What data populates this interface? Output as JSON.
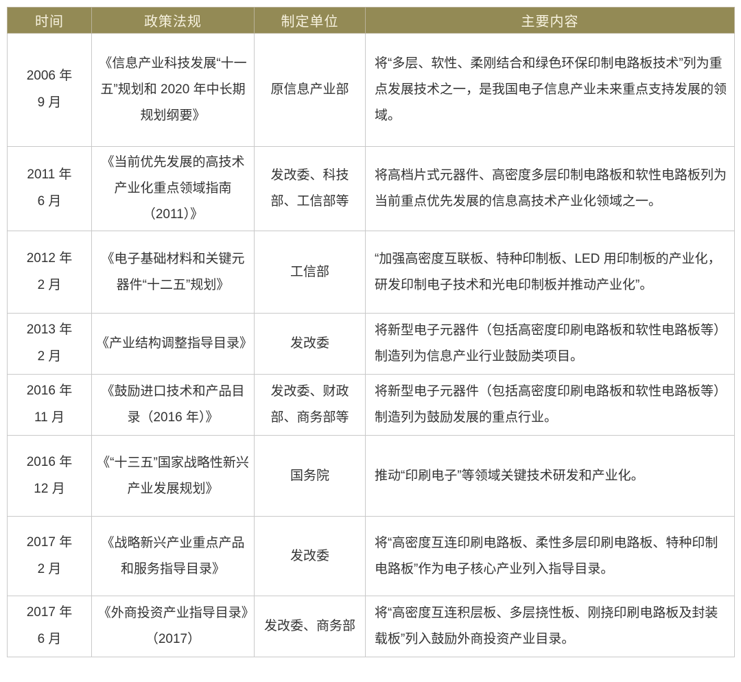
{
  "colors": {
    "header_bg": "#938a55",
    "header_text": "#f7f2df",
    "cell_border": "#c9c9c9",
    "body_text": "#333333"
  },
  "table": {
    "headers": [
      "时间",
      "政策法规",
      "制定单位",
      "主要内容"
    ],
    "rows": [
      {
        "time_year": "2006 年",
        "time_month": "9 月",
        "policy": "《信息产业科技发展“十一五”规划和 2020 年中长期规划纲要》",
        "unit": "原信息产业部",
        "content": "将“多层、软性、柔刚结合和绿色环保印制电路板技术”列为重点发展技术之一，是我国电子信息产业未来重点支持发展的领域。"
      },
      {
        "time_year": "2011 年",
        "time_month": "6 月",
        "policy": "《当前优先发展的高技术产业化重点领域指南（2011）》",
        "unit": "发改委、科技部、工信部等",
        "content": "将高档片式元器件、高密度多层印制电路板和软性电路板列为当前重点优先发展的信息高技术产业化领域之一。"
      },
      {
        "time_year": "2012 年",
        "time_month": "2 月",
        "policy": "《电子基础材料和关键元器件“十二五”规划》",
        "unit": "工信部",
        "content": "“加强高密度互联板、特种印制板、LED 用印制板的产业化，研发印制电子技术和光电印制板并推动产业化”。"
      },
      {
        "time_year": "2013 年",
        "time_month": "2 月",
        "policy": "《产业结构调整指导目录》",
        "unit": "发改委",
        "content": "将新型电子元器件（包括高密度印刷电路板和软性电路板等）制造列为信息产业行业鼓励类项目。"
      },
      {
        "time_year": "2016 年",
        "time_month": "11 月",
        "policy": "《鼓励进口技术和产品目录（2016 年）》",
        "unit": "发改委、财政部、商务部等",
        "content": "将新型电子元器件（包括高密度印刷电路板和软性电路板等）制造列为鼓励发展的重点行业。"
      },
      {
        "time_year": "2016 年",
        "time_month": "12 月",
        "policy": "《“十三五”国家战略性新兴产业发展规划》",
        "unit": "国务院",
        "content": "推动“印刷电子”等领域关键技术研发和产业化。"
      },
      {
        "time_year": "2017 年",
        "time_month": "2 月",
        "policy": "《战略新兴产业重点产品和服务指导目录》",
        "unit": "发改委",
        "content": "将“高密度互连印刷电路板、柔性多层印刷电路板、特种印制电路板”作为电子核心产业列入指导目录。"
      },
      {
        "time_year": "2017 年",
        "time_month": "6 月",
        "policy": "《外商投资产业指导目录》（2017）",
        "unit": "发改委、商务部",
        "content": "将“高密度互连积层板、多层挠性板、刚挠印刷电路板及封装载板”列入鼓励外商投资产业目录。"
      }
    ]
  }
}
